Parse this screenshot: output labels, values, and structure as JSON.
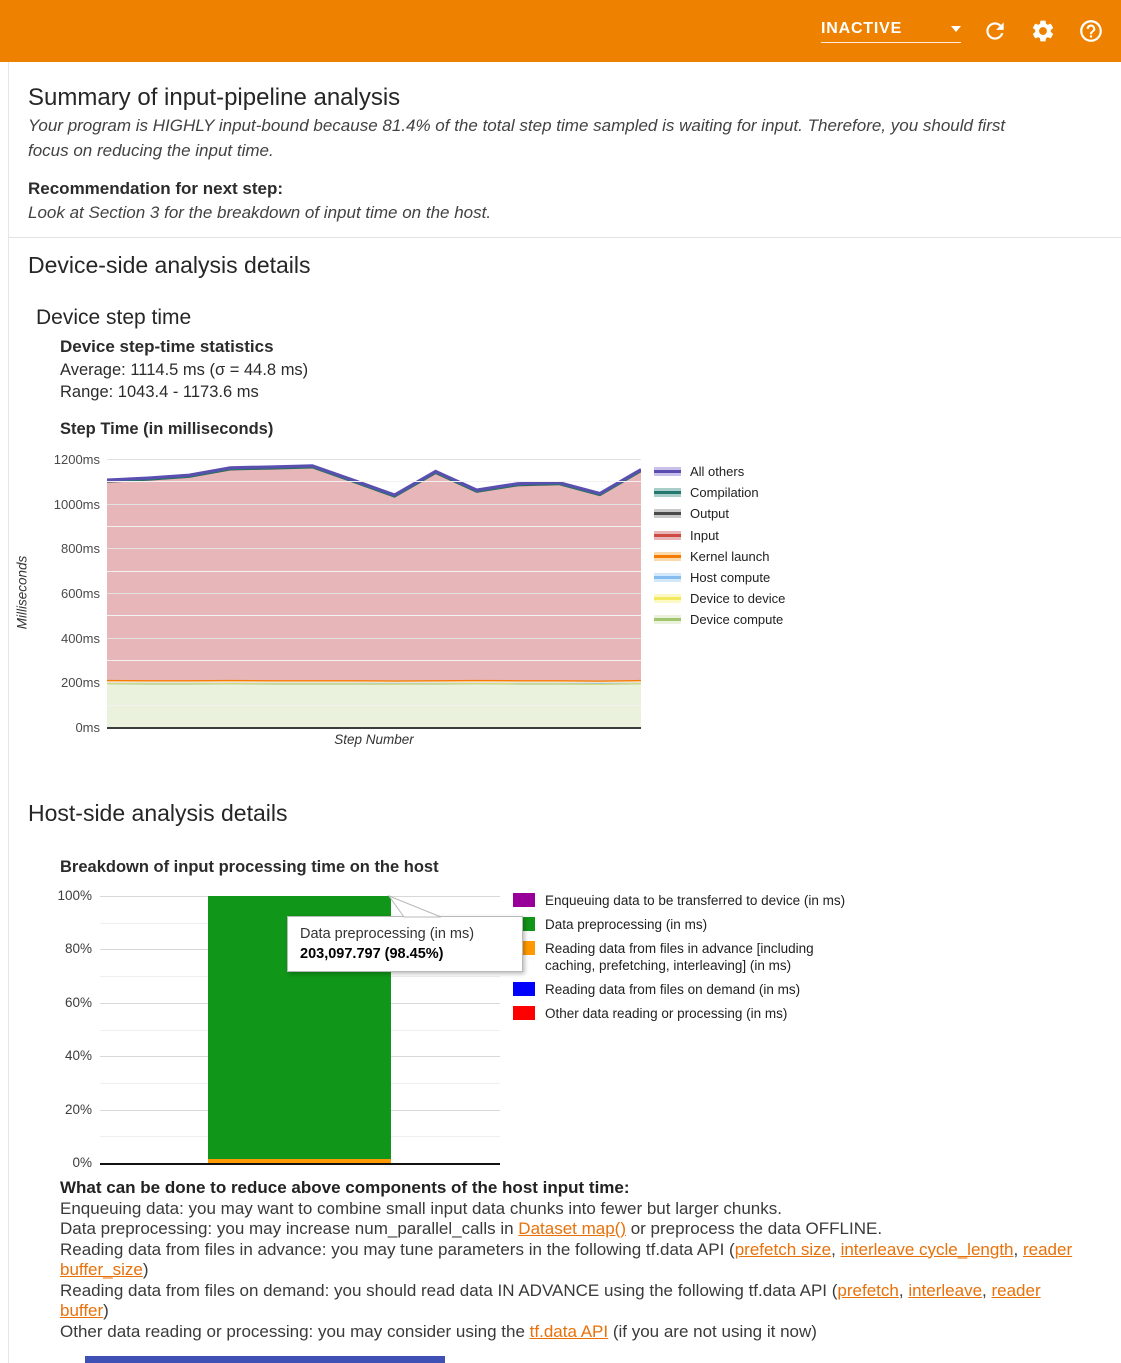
{
  "colors": {
    "app_bar": "#ee8100",
    "link": "#e8710a",
    "partial_bottom_element": "#3f51b5"
  },
  "app_bar": {
    "run_status": "INACTIVE",
    "icons": [
      "refresh-icon",
      "settings-icon",
      "help-icon"
    ]
  },
  "summary": {
    "title": "Summary of input-pipeline analysis",
    "body": "Your program is HIGHLY input-bound because 81.4% of the total step time sampled is waiting for input. Therefore, you should first focus on reducing the input time.",
    "recommendation_label": "Recommendation for next step:",
    "recommendation_text": "Look at Section 3 for the breakdown of input time on the host."
  },
  "device_section": {
    "title": "Device-side analysis details",
    "subtitle": "Device step time",
    "stats_title": "Device step-time statistics",
    "stats_average": "Average: 1114.5 ms (σ = 44.8 ms)",
    "stats_range": "Range: 1043.4 - 1173.6 ms",
    "chart_title": "Step Time (in milliseconds)"
  },
  "host_section": {
    "title": "Host-side analysis details",
    "chart_title": "Breakdown of input processing time on the host",
    "advice_title": "What can be done to reduce above components of the host input time:",
    "advice_lines": [
      [
        {
          "text": "Enqueuing data: you may want to combine small input data chunks into fewer but larger chunks."
        }
      ],
      [
        {
          "text": "Data preprocessing: you may increase num_parallel_calls in "
        },
        {
          "text": "Dataset map()",
          "link": true
        },
        {
          "text": " or preprocess the data OFFLINE."
        }
      ],
      [
        {
          "text": "Reading data from files in advance: you may tune parameters in the following tf.data API ("
        },
        {
          "text": "prefetch size",
          "link": true
        },
        {
          "text": ", "
        },
        {
          "text": "interleave cycle_length",
          "link": true
        },
        {
          "text": ", "
        },
        {
          "text": "reader buffer_size",
          "link": true
        },
        {
          "text": ")"
        }
      ],
      [
        {
          "text": "Reading data from files on demand: you should read data IN ADVANCE using the following tf.data API ("
        },
        {
          "text": "prefetch",
          "link": true
        },
        {
          "text": ", "
        },
        {
          "text": "interleave",
          "link": true
        },
        {
          "text": ", "
        },
        {
          "text": "reader buffer",
          "link": true
        },
        {
          "text": ")"
        }
      ],
      [
        {
          "text": "Other data reading or processing: you may consider using the "
        },
        {
          "text": "tf.data API",
          "link": true
        },
        {
          "text": " (if you are not using it now)"
        }
      ]
    ]
  },
  "chart_data": [
    {
      "type": "area",
      "stacked": true,
      "title": "Step Time (in milliseconds)",
      "xlabel": "Step Number",
      "ylabel": "Milliseconds",
      "ylim": [
        0,
        1200
      ],
      "ytick_labels": [
        "0ms",
        "200ms",
        "400ms",
        "600ms",
        "800ms",
        "1000ms",
        "1200ms"
      ],
      "grid": "horizontal-major-and-minor",
      "legend_position": "right",
      "x": [
        1,
        2,
        3,
        4,
        5,
        6,
        7,
        8,
        9,
        10,
        11,
        12,
        13,
        14
      ],
      "series": [
        {
          "name": "Device compute",
          "line_color": "#a2c46e",
          "fill_color": "#eaf1dd",
          "stroke_width": 2,
          "values": [
            196,
            195,
            195,
            196,
            195,
            195,
            195,
            194,
            195,
            196,
            195,
            195,
            193,
            196
          ]
        },
        {
          "name": "Device to device",
          "line_color": "#f3e95f",
          "fill_color": "#fdf9c4",
          "stroke_width": 2,
          "values": [
            2,
            2,
            2,
            2,
            2,
            2,
            2,
            2,
            2,
            2,
            2,
            2,
            2,
            2
          ]
        },
        {
          "name": "Host compute",
          "line_color": "#85bdf0",
          "fill_color": "#d4e8fb",
          "stroke_width": 2,
          "values": [
            3,
            3,
            3,
            3,
            3,
            3,
            3,
            3,
            3,
            3,
            3,
            3,
            3,
            3
          ]
        },
        {
          "name": "Kernel launch",
          "line_color": "#f57c00",
          "fill_color": "#fad9ab",
          "stroke_width": 2.5,
          "values": [
            10,
            10,
            10,
            10,
            10,
            10,
            10,
            10,
            10,
            10,
            10,
            10,
            10,
            10
          ]
        },
        {
          "name": "Input",
          "line_color": "#cf4a41",
          "fill_color": "#e6b6b8",
          "stroke_width": 0,
          "values": [
            883,
            893,
            906,
            938,
            943,
            948,
            883,
            818,
            923,
            838,
            868,
            873,
            826,
            930
          ]
        },
        {
          "name": "Output",
          "line_color": "#4a4a4a",
          "fill_color": "#c9c9c9",
          "stroke_width": 1.5,
          "values": [
            3,
            3,
            3,
            3,
            3,
            3,
            3,
            3,
            3,
            3,
            3,
            3,
            3,
            3
          ]
        },
        {
          "name": "Compilation",
          "line_color": "#23796f",
          "fill_color": "#a9cdc8",
          "stroke_width": 2.5,
          "values": [
            4,
            4,
            4,
            4,
            4,
            4,
            4,
            4,
            4,
            4,
            4,
            4,
            4,
            4
          ]
        },
        {
          "name": "All others",
          "line_color": "#5a4fb0",
          "fill_color": "#c9c0ea",
          "stroke_width": 3,
          "values": [
            5,
            5,
            5,
            5,
            5,
            5,
            5,
            5,
            5,
            5,
            5,
            5,
            5,
            5
          ]
        }
      ],
      "stats": {
        "average_ms": 1114.5,
        "sigma_ms": 44.8,
        "range_ms": [
          1043.4,
          1173.6
        ]
      }
    },
    {
      "type": "bar",
      "stacked": true,
      "title": "Breakdown of input processing time on the host",
      "categories": [
        ""
      ],
      "ylim": [
        0,
        100
      ],
      "ytick_labels": [
        "0%",
        "20%",
        "40%",
        "60%",
        "80%",
        "100%"
      ],
      "grid": "horizontal-major-and-minor",
      "legend_position": "right",
      "series": [
        {
          "name": "Enqueuing data to be transferred to device (in ms)",
          "color": "#990099",
          "pct": 0
        },
        {
          "name": "Data preprocessing (in ms)",
          "color": "#109618",
          "pct": 98.45,
          "value_ms": "203,097.797"
        },
        {
          "name": "Reading data from files in advance [including caching, prefetching, interleaving] (in ms)",
          "color": "#ff9900",
          "pct": 1.55
        },
        {
          "name": "Reading data from files on demand (in ms)",
          "color": "#0000ff",
          "pct": 0
        },
        {
          "name": "Other data reading or processing (in ms)",
          "color": "#ff0000",
          "pct": 0
        }
      ],
      "tooltip": {
        "title": "Data preprocessing (in ms)",
        "value": "203,097.797 (98.45%)"
      }
    }
  ]
}
